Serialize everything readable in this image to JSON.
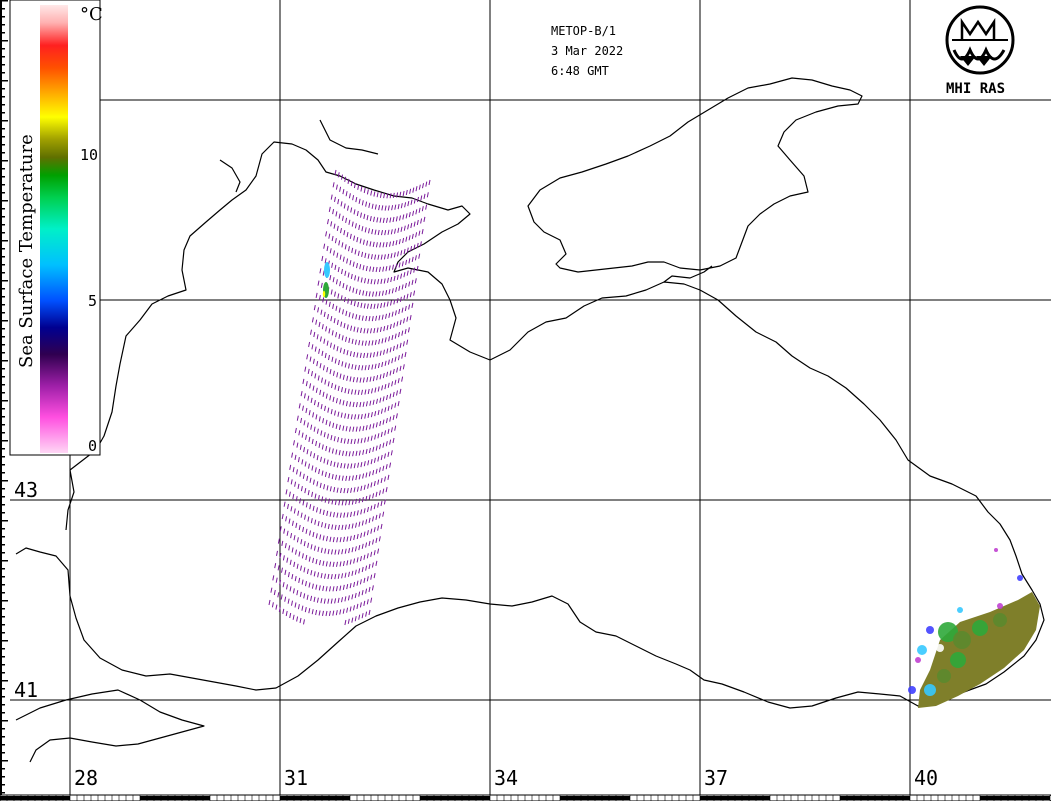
{
  "header": {
    "satellite": "METOP-B/1",
    "date": "3 Mar 2022",
    "time": "6:48 GMT"
  },
  "logo": {
    "text": "MHI RAS"
  },
  "legend": {
    "title": "Sea Surface Temperature",
    "unit": "°C",
    "ticks": [
      "0",
      "5",
      "10"
    ],
    "colors": [
      "#ffd7f5",
      "#ff4fe0",
      "#9e1fa8",
      "#300050",
      "#000090",
      "#0050ff",
      "#00c0ff",
      "#00f0c8",
      "#00d050",
      "#00a000",
      "#607000",
      "#a0a000",
      "#ffff00",
      "#ffb000",
      "#ff5000",
      "#ff2020",
      "#ffb0b0",
      "#ffe8e8"
    ]
  },
  "lat_labels": [
    "43",
    "41"
  ],
  "lon_labels": [
    "28",
    "31",
    "34",
    "37",
    "40"
  ],
  "swath_color": "#7a1a9a",
  "sst_patch_colors": [
    "#7f7f2a",
    "#5c8a2e",
    "#2fa83a",
    "#36c9ff",
    "#4040ff",
    "#c040d0",
    "#ffffff"
  ]
}
